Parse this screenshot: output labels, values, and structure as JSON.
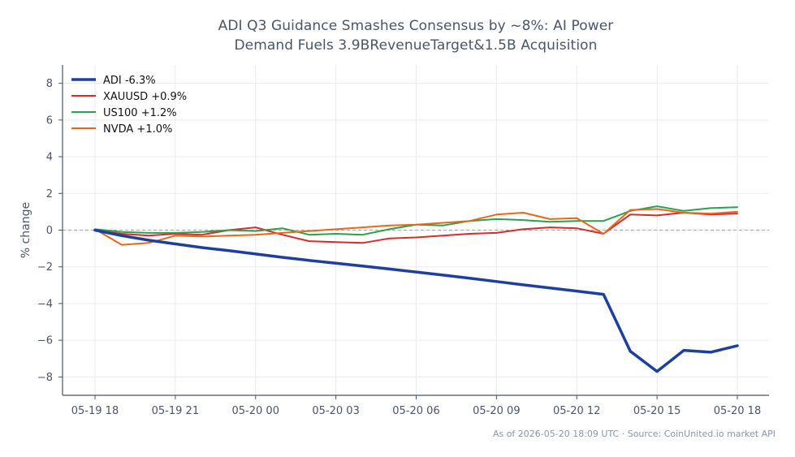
{
  "chart_data": {
    "type": "line",
    "title_line1": "ADI Q3 Guidance Smashes Consensus by ~8%: AI Power",
    "title_line2": "Demand Fuels 3.9BRevenueTarget&1.5B Acquisition",
    "xlabel": "",
    "ylabel": "% change",
    "ylim": [
      -9,
      9
    ],
    "yticks": [
      -8,
      -6,
      -4,
      -2,
      0,
      2,
      4,
      6,
      8
    ],
    "x_ticks": [
      "05-19 18",
      "05-19 21",
      "05-20 00",
      "05-20 03",
      "05-20 06",
      "05-20 09",
      "05-20 12",
      "05-20 15",
      "05-20 18"
    ],
    "x": [
      "05-19 18",
      "05-19 19",
      "05-19 20",
      "05-19 21",
      "05-19 22",
      "05-19 23",
      "05-20 00",
      "05-20 01",
      "05-20 02",
      "05-20 03",
      "05-20 04",
      "05-20 05",
      "05-20 06",
      "05-20 07",
      "05-20 08",
      "05-20 09",
      "05-20 10",
      "05-20 11",
      "05-20 12",
      "05-20 13",
      "05-20 14",
      "05-20 15",
      "05-20 16",
      "05-20 17",
      "05-20 18"
    ],
    "grid": true,
    "legend_position": "top-left",
    "baseline": 0,
    "series": [
      {
        "name": "ADI -6.3%",
        "color": "#1f3f9e",
        "width": 3.5,
        "values": [
          0.0,
          -0.3,
          -0.55,
          -0.75,
          -0.95,
          -1.12,
          -1.3,
          -1.48,
          -1.65,
          -1.8,
          -1.96,
          -2.12,
          -2.28,
          -2.45,
          -2.62,
          -2.8,
          -2.98,
          -3.15,
          -3.32,
          -3.5,
          -6.6,
          -7.7,
          -6.55,
          -6.65,
          -6.3
        ]
      },
      {
        "name": "XAUUSD +0.9%",
        "color": "#d62c2c",
        "width": 2,
        "values": [
          0.0,
          -0.2,
          -0.3,
          -0.2,
          -0.25,
          0.0,
          0.15,
          -0.25,
          -0.6,
          -0.65,
          -0.7,
          -0.45,
          -0.4,
          -0.3,
          -0.2,
          -0.15,
          0.05,
          0.15,
          0.1,
          -0.2,
          0.85,
          0.8,
          0.95,
          0.85,
          0.9
        ]
      },
      {
        "name": "US100 +1.2%",
        "color": "#2ca04c",
        "width": 2,
        "values": [
          0.05,
          -0.1,
          -0.15,
          -0.15,
          -0.1,
          0.0,
          -0.05,
          0.1,
          -0.25,
          -0.2,
          -0.25,
          0.05,
          0.3,
          0.25,
          0.5,
          0.6,
          0.55,
          0.45,
          0.5,
          0.5,
          1.05,
          1.3,
          1.05,
          1.2,
          1.25
        ]
      },
      {
        "name": "NVDA +1.0%",
        "color": "#e8671a",
        "width": 2,
        "values": [
          0.05,
          -0.8,
          -0.7,
          -0.3,
          -0.35,
          -0.3,
          -0.25,
          -0.15,
          -0.05,
          0.05,
          0.15,
          0.25,
          0.3,
          0.4,
          0.5,
          0.85,
          0.95,
          0.6,
          0.65,
          -0.2,
          1.1,
          1.15,
          0.95,
          0.9,
          1.0
        ]
      }
    ]
  },
  "footer": "As of 2026-05-20 18:09 UTC · Source: CoinUnited.io market API",
  "colors": {
    "axis": "#4a5568",
    "grid": "#e8ebef",
    "baseline": "#a0a8b4"
  }
}
